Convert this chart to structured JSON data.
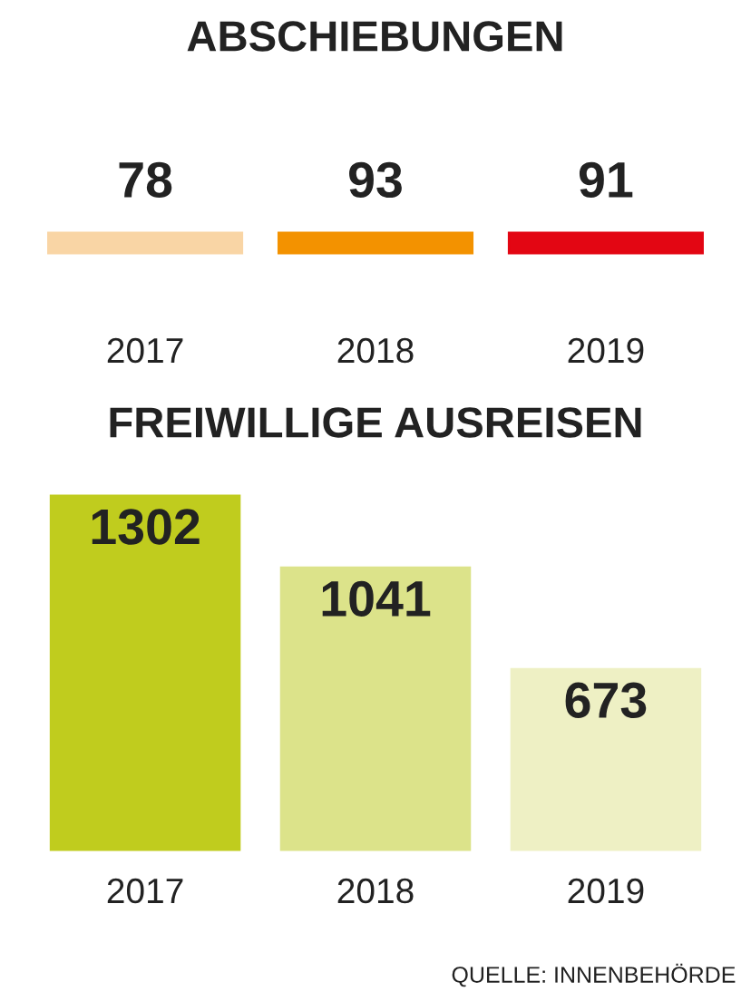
{
  "chart_data": [
    {
      "type": "other",
      "title": "ABSCHIEBUNGEN",
      "categories": [
        "2017",
        "2018",
        "2019"
      ],
      "values": [
        78,
        93,
        91
      ],
      "colors": [
        "#f9d5a5",
        "#f39200",
        "#e30613"
      ],
      "data_labels": true
    },
    {
      "type": "bar",
      "title": "FREIWILLIGE AUSREISEN",
      "categories": [
        "2017",
        "2018",
        "2019"
      ],
      "values": [
        1302,
        1041,
        673
      ],
      "colors": [
        "#c0cc1e",
        "#dce38a",
        "#eef0c4"
      ],
      "data_labels": true,
      "annotations": [
        "QUELLE: INNENBEHÖRDE"
      ]
    }
  ]
}
